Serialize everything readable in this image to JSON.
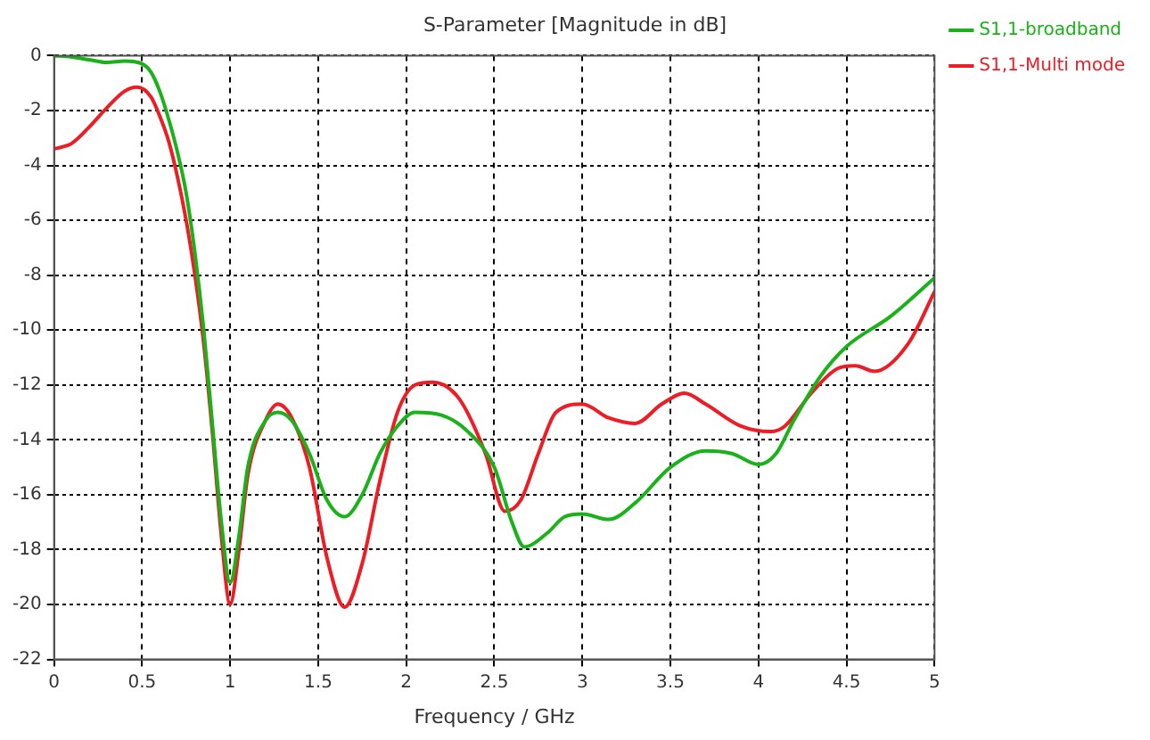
{
  "chart_data": {
    "type": "line",
    "title": "S-Parameter [Magnitude in dB]",
    "xlabel": "Frequency / GHz",
    "xlim": [
      0,
      5
    ],
    "xticks": [
      0,
      0.5,
      1,
      1.5,
      2,
      2.5,
      3,
      3.5,
      4,
      4.5,
      5
    ],
    "ylim": [
      -22,
      0
    ],
    "yticks": [
      -22,
      -20,
      -18,
      -16,
      -14,
      -12,
      -10,
      -8,
      -6,
      -4,
      -2,
      0
    ],
    "grid": true,
    "legend": "top right",
    "marker": "none",
    "line_style": "solid",
    "series": [
      {
        "name": "S1,1-broadband",
        "color": "#19b219",
        "x": [
          0,
          0.1,
          0.2,
          0.3,
          0.4,
          0.5,
          0.55,
          0.6,
          0.65,
          0.7,
          0.75,
          0.8,
          0.85,
          0.9,
          0.95,
          1.0,
          1.05,
          1.1,
          1.2,
          1.27,
          1.35,
          1.45,
          1.55,
          1.65,
          1.75,
          1.85,
          1.95,
          2.05,
          2.2,
          2.35,
          2.5,
          2.6,
          2.67,
          2.8,
          2.9,
          3.0,
          3.15,
          3.3,
          3.5,
          3.7,
          3.85,
          4.0,
          4.1,
          4.2,
          4.35,
          4.5,
          4.75,
          5
        ],
        "values": [
          0,
          -0.05,
          -0.15,
          -0.25,
          -0.2,
          -0.3,
          -0.6,
          -1.3,
          -2.3,
          -3.5,
          -5,
          -7.2,
          -10,
          -13.5,
          -17,
          -19.2,
          -17.5,
          -15,
          -13.3,
          -13,
          -13.3,
          -14.5,
          -16.2,
          -16.8,
          -16,
          -14.5,
          -13.5,
          -13,
          -13.1,
          -13.7,
          -15,
          -17,
          -17.9,
          -17.4,
          -16.8,
          -16.7,
          -16.9,
          -16.3,
          -15,
          -14.4,
          -14.5,
          -14.9,
          -14.5,
          -13.3,
          -11.7,
          -10.6,
          -9.5,
          -8.1
        ]
      },
      {
        "name": "S1,1-Multi mode",
        "color": "#ee1c24",
        "x": [
          0,
          0.1,
          0.2,
          0.3,
          0.4,
          0.47,
          0.55,
          0.6,
          0.65,
          0.7,
          0.75,
          0.8,
          0.85,
          0.9,
          0.95,
          1.0,
          1.05,
          1.1,
          1.2,
          1.27,
          1.35,
          1.45,
          1.55,
          1.65,
          1.75,
          1.85,
          1.95,
          2.05,
          2.15,
          2.3,
          2.45,
          2.56,
          2.65,
          2.75,
          2.85,
          3.0,
          3.15,
          3.3,
          3.45,
          3.58,
          3.7,
          3.9,
          4.07,
          4.15,
          4.3,
          4.45,
          4.55,
          4.66,
          4.85,
          5
        ],
        "values": [
          -3.4,
          -3.2,
          -2.6,
          -1.9,
          -1.3,
          -1.15,
          -1.5,
          -2.2,
          -3.1,
          -4.4,
          -6,
          -8,
          -10.5,
          -13.8,
          -17.5,
          -20,
          -18,
          -15.3,
          -13.3,
          -12.7,
          -13.2,
          -15,
          -18.3,
          -20.1,
          -18.5,
          -15.5,
          -13,
          -12,
          -11.9,
          -12.5,
          -14.5,
          -16.6,
          -16.2,
          -14.5,
          -13,
          -12.7,
          -13.2,
          -13.4,
          -12.7,
          -12.3,
          -12.7,
          -13.5,
          -13.7,
          -13.5,
          -12.3,
          -11.4,
          -11.3,
          -11.5,
          -10.5,
          -8.6
        ]
      }
    ]
  }
}
